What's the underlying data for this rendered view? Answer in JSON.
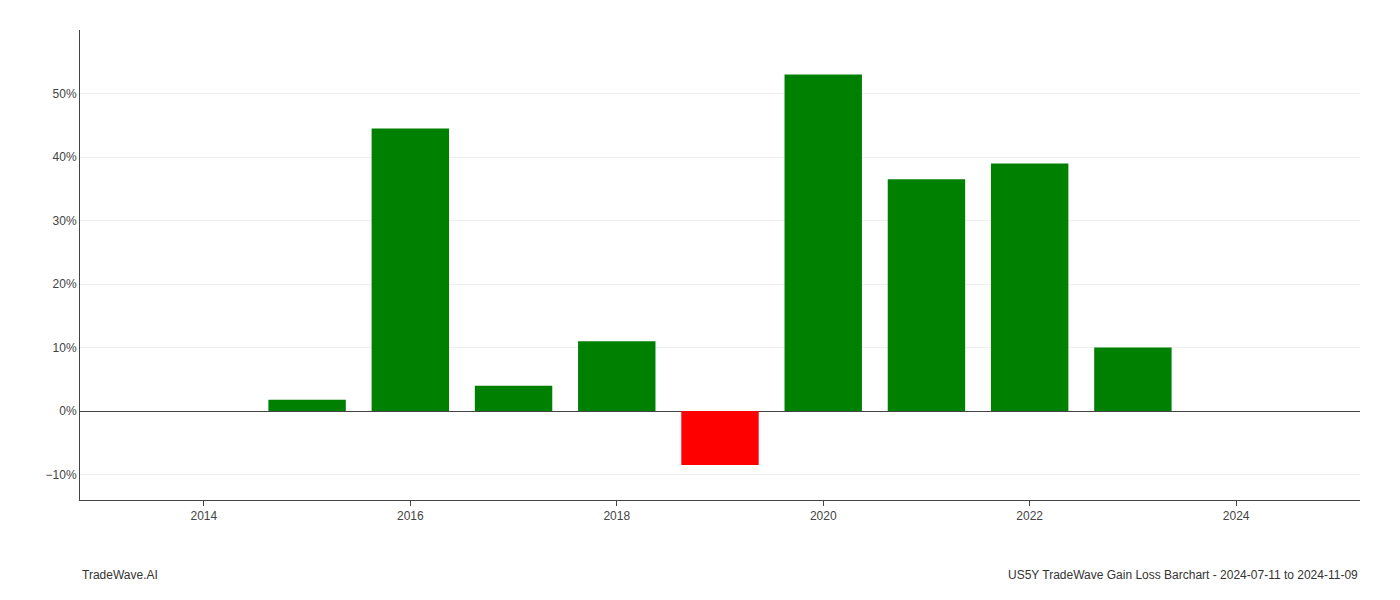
{
  "chart_data": {
    "type": "bar",
    "x": [
      2015,
      2016,
      2017,
      2018,
      2019,
      2020,
      2021,
      2022,
      2023
    ],
    "values": [
      1.8,
      44.5,
      4.0,
      11.0,
      -8.5,
      53.0,
      36.5,
      39.0,
      10.0
    ],
    "colors": [
      "#008000",
      "#008000",
      "#008000",
      "#008000",
      "#ff0000",
      "#008000",
      "#008000",
      "#008000",
      "#008000"
    ],
    "xlim": [
      2012.8,
      2025.2
    ],
    "ylim": [
      -14,
      60
    ],
    "xticks": [
      2014,
      2016,
      2018,
      2020,
      2022,
      2024
    ],
    "yticks": [
      {
        "value": -10,
        "label": "−10%"
      },
      {
        "value": 0,
        "label": "0%"
      },
      {
        "value": 10,
        "label": "10%"
      },
      {
        "value": 20,
        "label": "20%"
      },
      {
        "value": 30,
        "label": "30%"
      },
      {
        "value": 40,
        "label": "40%"
      },
      {
        "value": 50,
        "label": "50%"
      }
    ],
    "grid": true,
    "annotations": [
      "TradeWave.AI",
      "US5Y TradeWave Gain Loss Barchart - 2024-07-11 to 2024-11-09"
    ]
  }
}
